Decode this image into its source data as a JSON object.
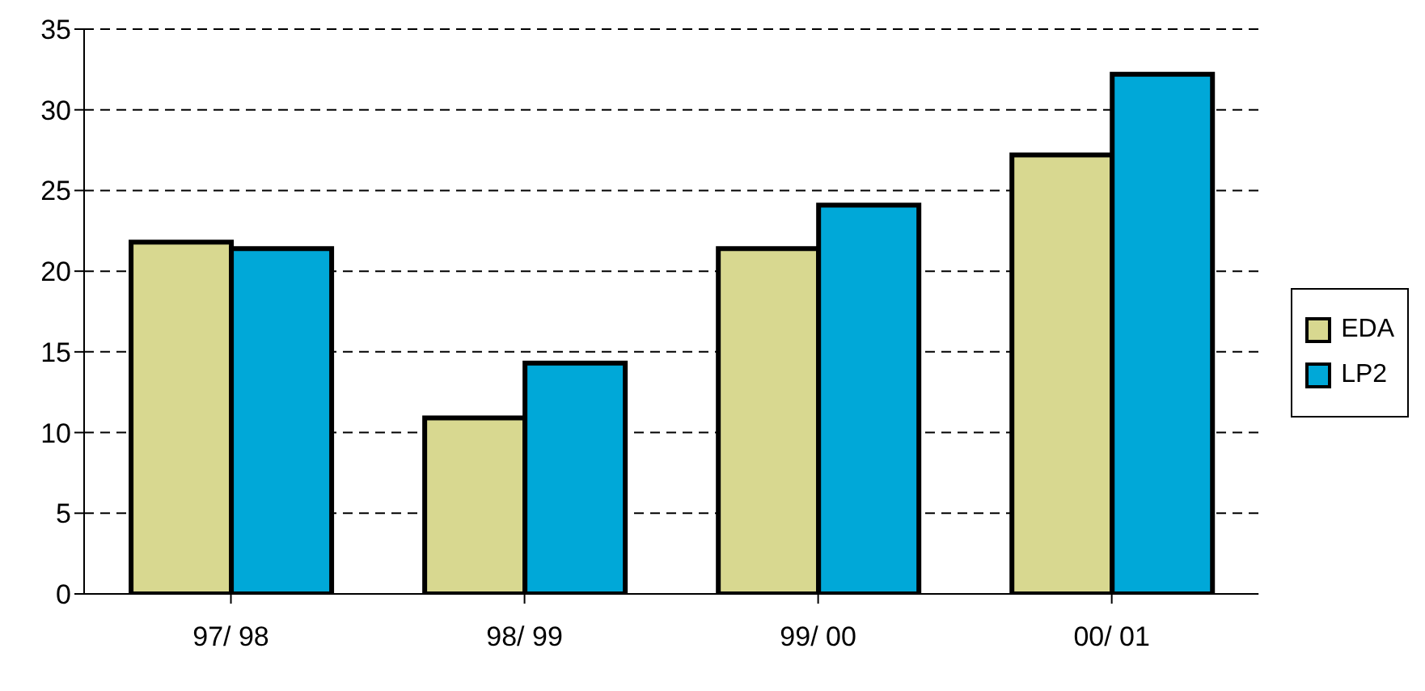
{
  "chart_data": {
    "type": "bar",
    "categories": [
      "97/ 98",
      "98/ 99",
      "99/ 00",
      "00/ 01"
    ],
    "series": [
      {
        "name": "EDA",
        "color": "#d8d890",
        "values": [
          21.8,
          10.9,
          21.4,
          27.2
        ]
      },
      {
        "name": "LP2",
        "color": "#00a8d8",
        "values": [
          21.4,
          14.3,
          24.1,
          32.2
        ]
      }
    ],
    "ylim": [
      0,
      35
    ],
    "yticks": [
      0,
      5,
      10,
      15,
      20,
      25,
      30,
      35
    ],
    "grid": "y",
    "legend": "right"
  }
}
